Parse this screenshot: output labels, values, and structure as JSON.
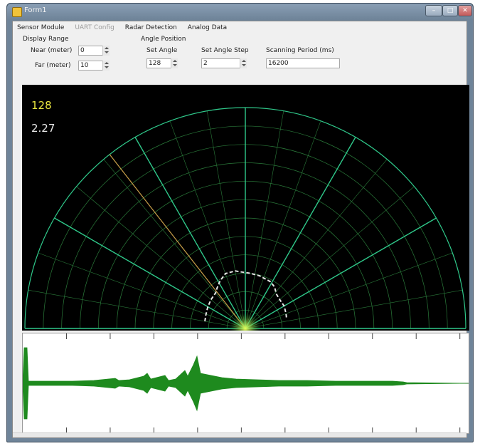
{
  "window": {
    "title": "Form1",
    "minimize_glyph": "–",
    "maximize_glyph": "□",
    "close_glyph": "✕"
  },
  "tabs": [
    {
      "label": "Sensor Module",
      "enabled": true
    },
    {
      "label": "UART Config",
      "enabled": false
    },
    {
      "label": "Radar Detection",
      "enabled": true
    },
    {
      "label": "Analog Data",
      "enabled": true
    }
  ],
  "display_range": {
    "heading": "Display Range",
    "near_label": "Near (meter)",
    "near_value": "0",
    "far_label": "Far (meter)",
    "far_value": "10"
  },
  "angle_position": {
    "heading": "Angle Position",
    "set_angle_label": "Set Angle",
    "set_angle_value": "128",
    "set_angle_step_label": "Set Angle Step",
    "set_angle_step_value": "2"
  },
  "scanning_period": {
    "label": "Scanning Period (ms)",
    "value": "16200"
  },
  "radar": {
    "current_angle": "128",
    "current_distance": "2.27",
    "spoke_angles_deg": [
      0,
      30,
      60,
      90,
      120,
      150,
      180
    ],
    "ring_count": 12,
    "sweep_angle_deg": 128,
    "grid_color": "#2fc88a",
    "fine_grid_color": "#2a7a3a",
    "sweep_color": "#c8a04a",
    "detection_color": "#e6e6e6"
  },
  "waveform": {
    "trace_color": "#1e8a1e",
    "tick_count": 10
  }
}
